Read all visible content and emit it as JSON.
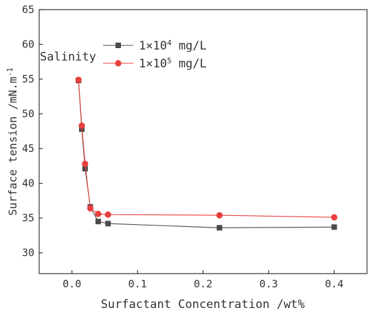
{
  "chart_data": {
    "type": "line",
    "title": "",
    "xlabel": "Surfactant Concentration /wt%",
    "ylabel": "Surface tension /mN.m",
    "ylabel_superscript": "-1",
    "xlim": [
      -0.05,
      0.45
    ],
    "ylim": [
      27,
      65
    ],
    "x_ticks": [
      0.0,
      0.1,
      0.2,
      0.3,
      0.4
    ],
    "x_tick_labels": [
      "0.0",
      "0.1",
      "0.2",
      "0.3",
      "0.4"
    ],
    "y_ticks": [
      30,
      35,
      40,
      45,
      50,
      55,
      60,
      65
    ],
    "y_tick_labels": [
      "30",
      "35",
      "40",
      "45",
      "50",
      "55",
      "60",
      "65"
    ],
    "grid": false,
    "legend": {
      "title": "Salinity",
      "placement": "top-left",
      "entries": [
        {
          "prefix": "1×10",
          "exponent": "4",
          "suffix": " mg/L"
        },
        {
          "prefix": "1×10",
          "exponent": "5",
          "suffix": " mg/L"
        }
      ]
    },
    "series": [
      {
        "marker": "square",
        "color": "#4a4a4a",
        "x": [
          0.01,
          0.015,
          0.02,
          0.028,
          0.04,
          0.055,
          0.225,
          0.4
        ],
        "y": [
          54.8,
          47.8,
          42.1,
          36.6,
          34.5,
          34.2,
          33.6,
          33.7
        ]
      },
      {
        "marker": "circle",
        "color": "#e8403c",
        "x": [
          0.01,
          0.015,
          0.02,
          0.028,
          0.04,
          0.055,
          0.225,
          0.4
        ],
        "y": [
          54.9,
          48.3,
          42.8,
          36.4,
          35.6,
          35.5,
          35.4,
          35.1
        ]
      }
    ]
  }
}
